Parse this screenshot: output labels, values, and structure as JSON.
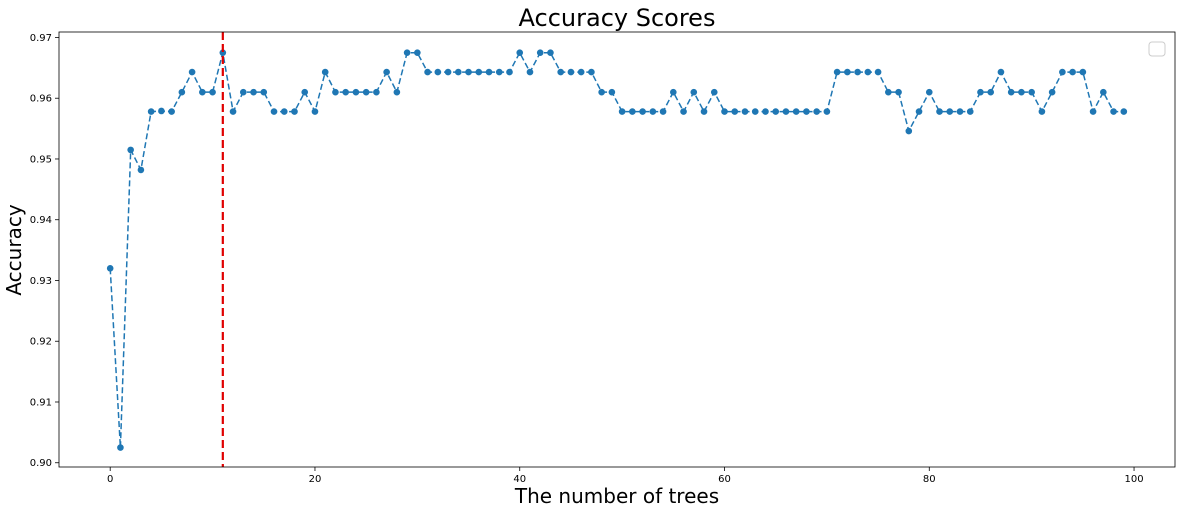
{
  "chart_data": {
    "type": "line",
    "title": "Accuracy Scores",
    "xlabel": "The number of trees",
    "ylabel": "Accuracy",
    "xlim": [
      -5,
      104
    ],
    "ylim": [
      0.8993,
      0.9709
    ],
    "x_ticks": [
      0,
      20,
      40,
      60,
      80,
      100
    ],
    "x_tick_labels": [
      "0",
      "20",
      "40",
      "60",
      "80",
      "100"
    ],
    "y_ticks": [
      0.9,
      0.91,
      0.92,
      0.93,
      0.94,
      0.95,
      0.96,
      0.97
    ],
    "y_tick_labels": [
      "0.90",
      "0.91",
      "0.92",
      "0.93",
      "0.94",
      "0.95",
      "0.96",
      "0.97"
    ],
    "grid": false,
    "legend": "top-right",
    "series_color": "#1f77b4",
    "marker_line_color": "#e00000",
    "marker_line_x": 11,
    "series": [
      {
        "x": [
          0,
          1,
          2,
          3,
          4,
          5,
          6,
          7,
          8,
          9,
          10,
          11,
          12,
          13,
          14,
          15,
          16,
          17,
          18,
          19,
          20,
          21,
          22,
          23,
          24,
          25,
          26,
          27,
          28,
          29,
          30,
          31,
          32,
          33,
          34,
          35,
          36,
          37,
          38,
          39,
          40,
          41,
          42,
          43,
          44,
          45,
          46,
          47,
          48,
          49,
          50,
          51,
          52,
          53,
          54,
          55,
          56,
          57,
          58,
          59,
          60,
          61,
          62,
          63,
          64,
          65,
          66,
          67,
          68,
          69,
          70,
          71,
          72,
          73,
          74,
          75,
          76,
          77,
          78,
          79,
          80,
          81,
          82,
          83,
          84,
          85,
          86,
          87,
          88,
          89,
          90,
          91,
          92,
          93,
          94,
          95,
          96,
          97,
          98,
          99
        ],
        "values": [
          0.932,
          0.9025,
          0.9515,
          0.9482,
          0.9578,
          0.9579,
          0.9578,
          0.961,
          0.9643,
          0.961,
          0.961,
          0.9675,
          0.9578,
          0.961,
          0.961,
          0.961,
          0.9578,
          0.9578,
          0.9578,
          0.961,
          0.9578,
          0.9643,
          0.961,
          0.961,
          0.961,
          0.961,
          0.961,
          0.9643,
          0.961,
          0.9675,
          0.9675,
          0.9643,
          0.9643,
          0.9643,
          0.9643,
          0.9643,
          0.9643,
          0.9643,
          0.9643,
          0.9643,
          0.9675,
          0.9643,
          0.9675,
          0.9675,
          0.9643,
          0.9643,
          0.9643,
          0.9643,
          0.961,
          0.961,
          0.9578,
          0.9578,
          0.9578,
          0.9578,
          0.9578,
          0.961,
          0.9578,
          0.961,
          0.9578,
          0.961,
          0.9578,
          0.9578,
          0.9578,
          0.9578,
          0.9578,
          0.9578,
          0.9578,
          0.9578,
          0.9578,
          0.9578,
          0.9578,
          0.9643,
          0.9643,
          0.9643,
          0.9643,
          0.9643,
          0.961,
          0.961,
          0.9546,
          0.9578,
          0.961,
          0.9578,
          0.9578,
          0.9578,
          0.9578,
          0.961,
          0.961,
          0.9643,
          0.961,
          0.961,
          0.961,
          0.9578,
          0.961,
          0.9643,
          0.9643,
          0.9643,
          0.9578,
          0.961,
          0.9578,
          0.9578
        ]
      }
    ]
  }
}
